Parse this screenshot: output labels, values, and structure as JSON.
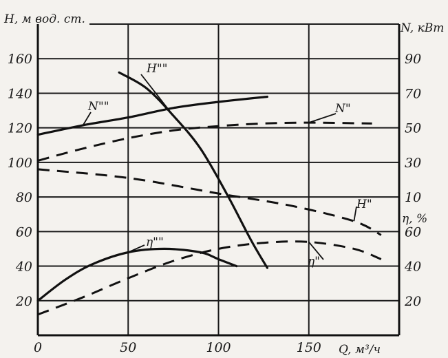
{
  "chart_data": {
    "type": "line",
    "title": "",
    "xlabel": "Q, м³/ч",
    "ylabel_left": "H, м вод. ст.",
    "ylabel_right_top": "N, кВт",
    "ylabel_right_bottom": "η, %",
    "xlim": [
      0,
      200
    ],
    "ylim_H": [
      0,
      180
    ],
    "x_ticks": [
      "0",
      "50",
      "100",
      "150"
    ],
    "h_ticks": [
      "20",
      "40",
      "60",
      "80",
      "100",
      "120",
      "140",
      "160"
    ],
    "n_ticks": [
      "10",
      "30",
      "50",
      "70",
      "90"
    ],
    "eta_ticks": [
      "20",
      "40",
      "60"
    ],
    "grid": true,
    "series": [
      {
        "name": "H\"\"",
        "label": "H\"\"",
        "style": "solid",
        "axis": "H",
        "points": [
          [
            45,
            152
          ],
          [
            60,
            143
          ],
          [
            75,
            127
          ],
          [
            90,
            108
          ],
          [
            105,
            81
          ],
          [
            118,
            55
          ],
          [
            127,
            39
          ]
        ]
      },
      {
        "name": "H\"",
        "label": "H\"",
        "style": "dashed",
        "axis": "H",
        "points": [
          [
            0,
            96
          ],
          [
            50,
            91
          ],
          [
            100,
            82
          ],
          [
            140,
            75
          ],
          [
            175,
            66
          ],
          [
            190,
            58
          ]
        ]
      },
      {
        "name": "N\"\"",
        "label": "N\"\"",
        "style": "solid",
        "axis": "N",
        "points": [
          [
            0,
            46
          ],
          [
            25,
            51.5
          ],
          [
            50,
            56
          ],
          [
            75,
            61.5
          ],
          [
            100,
            65
          ],
          [
            127,
            68
          ]
        ]
      },
      {
        "name": "N\"",
        "label": "N\"",
        "style": "dashed",
        "axis": "N",
        "points": [
          [
            0,
            31
          ],
          [
            25,
            38
          ],
          [
            50,
            44
          ],
          [
            75,
            48.5
          ],
          [
            100,
            51
          ],
          [
            125,
            52.5
          ],
          [
            150,
            53
          ],
          [
            185,
            52.5
          ]
        ]
      },
      {
        "name": "η\"\"",
        "label": "η\"\"",
        "style": "solid",
        "axis": "eta",
        "points": [
          [
            0,
            20
          ],
          [
            15,
            32
          ],
          [
            30,
            41
          ],
          [
            50,
            48
          ],
          [
            70,
            50
          ],
          [
            90,
            48
          ],
          [
            100,
            44
          ],
          [
            110,
            40
          ]
        ]
      },
      {
        "name": "η\"",
        "label": "η\"",
        "style": "dashed",
        "axis": "eta",
        "points": [
          [
            0,
            12
          ],
          [
            25,
            22
          ],
          [
            50,
            33
          ],
          [
            75,
            43
          ],
          [
            100,
            50
          ],
          [
            125,
            53.5
          ],
          [
            150,
            54
          ],
          [
            175,
            50
          ],
          [
            190,
            44
          ]
        ]
      }
    ]
  }
}
